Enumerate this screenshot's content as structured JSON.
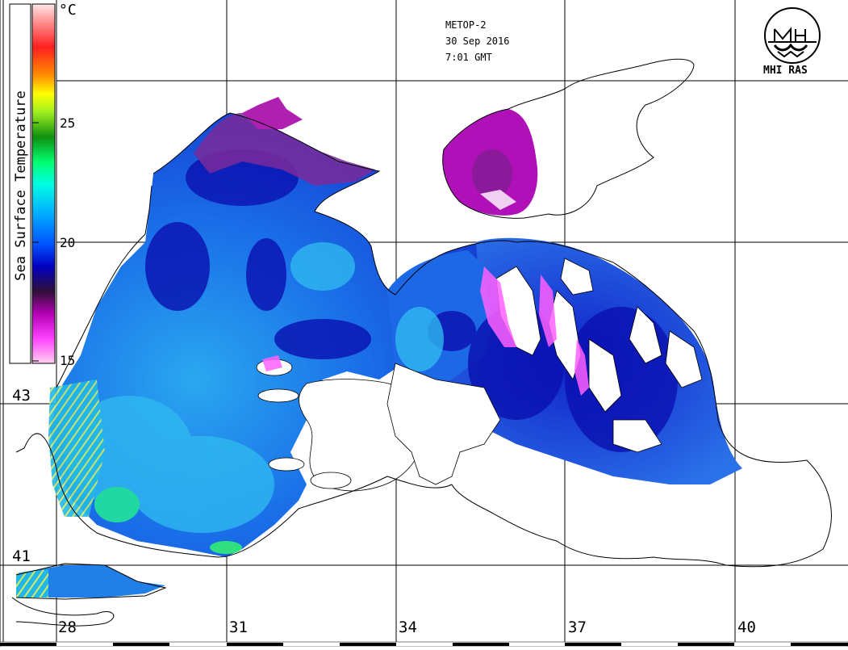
{
  "header": {
    "satellite": "METOP-2",
    "date": "30 Sep 2016",
    "time": "7:01 GMT"
  },
  "logo": {
    "text": "MHI RAS",
    "icon": "mhi-ras-logo-icon"
  },
  "colorbar": {
    "title": "Sea Surface Temperature",
    "unit": "°C",
    "ticks": [
      "25",
      "20",
      "15"
    ],
    "range": [
      15,
      30
    ],
    "colors": [
      "#ffd0f0",
      "#ff40ff",
      "#c010c0",
      "#301038",
      "#0000c0",
      "#0060ff",
      "#00c0ff",
      "#00ffe0",
      "#00ff80",
      "#10a010",
      "#a0ff20",
      "#ffff00",
      "#ff9000",
      "#ff2020",
      "#ff8080",
      "#ffe0e0"
    ]
  },
  "longitude_labels": [
    "28",
    "31",
    "34",
    "37",
    "40"
  ],
  "latitude_labels": [
    "43",
    "41"
  ],
  "map": {
    "region": "Black Sea",
    "land_color": "#ffffff",
    "coast_color": "#000000",
    "cloud_color": "#ffffff"
  }
}
